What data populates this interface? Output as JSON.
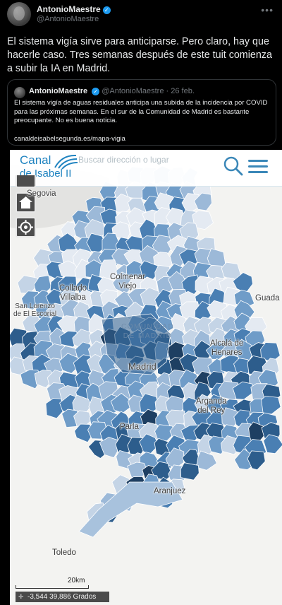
{
  "tweet": {
    "author_name": "AntonioMaestre",
    "author_handle": "@AntonioMaestre",
    "verified_glyph": "✓",
    "more_glyph": "•••",
    "text": "El sistema vigía sirve para anticiparse. Pero claro, hay que hacerle caso. Tres semanas después de este tuit comienza a subir la IA en Madrid."
  },
  "quoted_tweet": {
    "author_name": "AntonioMaestre",
    "author_handle": "@AntonioMaestre",
    "date": "· 26 feb.",
    "text": "El sistema vigía de aguas residuales anticipa una subida de la incidencia por COVID para las próximas semanas. En el sur de la Comunidad de Madrid es bastante preocupante. No es buena noticia.",
    "link": "canaldeisabelsegunda.es/mapa-vigia"
  },
  "map": {
    "brand_line1": "Canal",
    "brand_line2": "de Isabel II",
    "search_placeholder": "Buscar dirección o lugar",
    "places": {
      "segovia": "Segovia",
      "colmenar": "Colmenar\nViejo",
      "collado": "Collado\nVillalba",
      "sanlorenzo": "San Lorenzo\nde El Escorial",
      "guada": "Guada",
      "comunidad": "COMUNIDAD\nDE MADRID",
      "alcala": "Alcalá de\nHenares",
      "madrid": "Madrid",
      "arganda": "Arganda\ndel Rey",
      "parla": "Parla",
      "aranjuez": "Aranjuez",
      "toledo": "Toledo"
    },
    "scale_label": "20km",
    "coordinates": "-3,544 39,886 Grados",
    "icons": {
      "search": "search-icon",
      "menu": "hamburger-menu-icon",
      "home": "home-icon",
      "locate": "locate-icon",
      "coords": "crosshair-icon"
    },
    "colors": {
      "brand": "#1f83c0",
      "shade_levels": [
        "#e4eaf2",
        "#c4d4e6",
        "#9cb9d8",
        "#6f9cc8",
        "#4a7fb3",
        "#2d5d8c",
        "#1e3f62"
      ]
    }
  }
}
